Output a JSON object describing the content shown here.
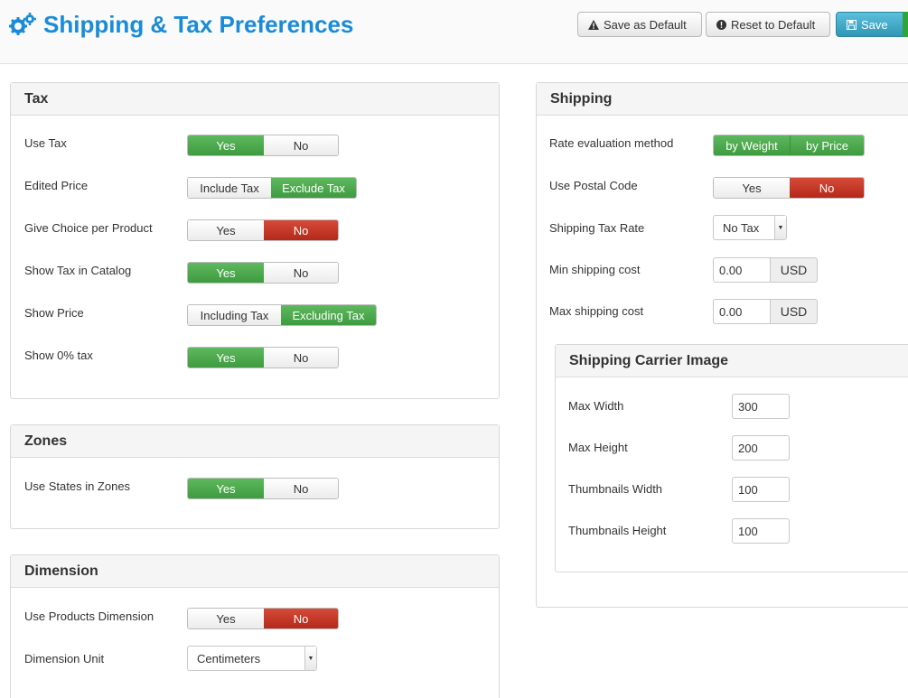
{
  "header": {
    "title": "Shipping & Tax Preferences",
    "save_default_label": "Save as Default",
    "reset_default_label": "Reset to Default",
    "save_label": "Save"
  },
  "tax": {
    "title": "Tax",
    "use_tax": {
      "label": "Use Tax",
      "options": [
        "Yes",
        "No"
      ],
      "selected": "Yes"
    },
    "edited_price": {
      "label": "Edited Price",
      "options": [
        "Include Tax",
        "Exclude Tax"
      ],
      "selected": "Exclude Tax"
    },
    "give_choice": {
      "label": "Give Choice per Product",
      "options": [
        "Yes",
        "No"
      ],
      "selected": "No"
    },
    "show_tax_catalog": {
      "label": "Show Tax in Catalog",
      "options": [
        "Yes",
        "No"
      ],
      "selected": "Yes"
    },
    "show_price": {
      "label": "Show Price",
      "options": [
        "Including Tax",
        "Excluding Tax"
      ],
      "selected": "Excluding Tax"
    },
    "show_zero_tax": {
      "label": "Show 0% tax",
      "options": [
        "Yes",
        "No"
      ],
      "selected": "Yes"
    }
  },
  "zones": {
    "title": "Zones",
    "use_states": {
      "label": "Use States in Zones",
      "options": [
        "Yes",
        "No"
      ],
      "selected": "Yes"
    }
  },
  "dimension": {
    "title": "Dimension",
    "use_products_dimension": {
      "label": "Use Products Dimension",
      "options": [
        "Yes",
        "No"
      ],
      "selected": "No"
    },
    "dimension_unit": {
      "label": "Dimension Unit",
      "value": "Centimeters"
    }
  },
  "shipping": {
    "title": "Shipping",
    "rate_method": {
      "label": "Rate evaluation method",
      "options": [
        "by Weight",
        "by Price"
      ],
      "selected": "both"
    },
    "use_postal_code": {
      "label": "Use Postal Code",
      "options": [
        "Yes",
        "No"
      ],
      "selected": "No"
    },
    "shipping_tax_rate": {
      "label": "Shipping Tax Rate",
      "value": "No Tax"
    },
    "min_cost": {
      "label": "Min shipping cost",
      "value": "0.00",
      "currency": "USD"
    },
    "max_cost": {
      "label": "Max shipping cost",
      "value": "0.00",
      "currency": "USD"
    }
  },
  "carrier_image": {
    "title": "Shipping Carrier Image",
    "max_width": {
      "label": "Max Width",
      "value": "300"
    },
    "max_height": {
      "label": "Max Height",
      "value": "200"
    },
    "thumbnails_width": {
      "label": "Thumbnails Width",
      "value": "100"
    },
    "thumbnails_height": {
      "label": "Thumbnails Height",
      "value": "100"
    }
  },
  "colors": {
    "accent": "#1a8bd6",
    "green": "#4cae4c",
    "red": "#c9302c",
    "info": "#39a3c6"
  },
  "icons": {
    "title": "gears-icon",
    "save_default": "warning-icon",
    "reset": "info-icon",
    "save": "floppy-icon"
  }
}
